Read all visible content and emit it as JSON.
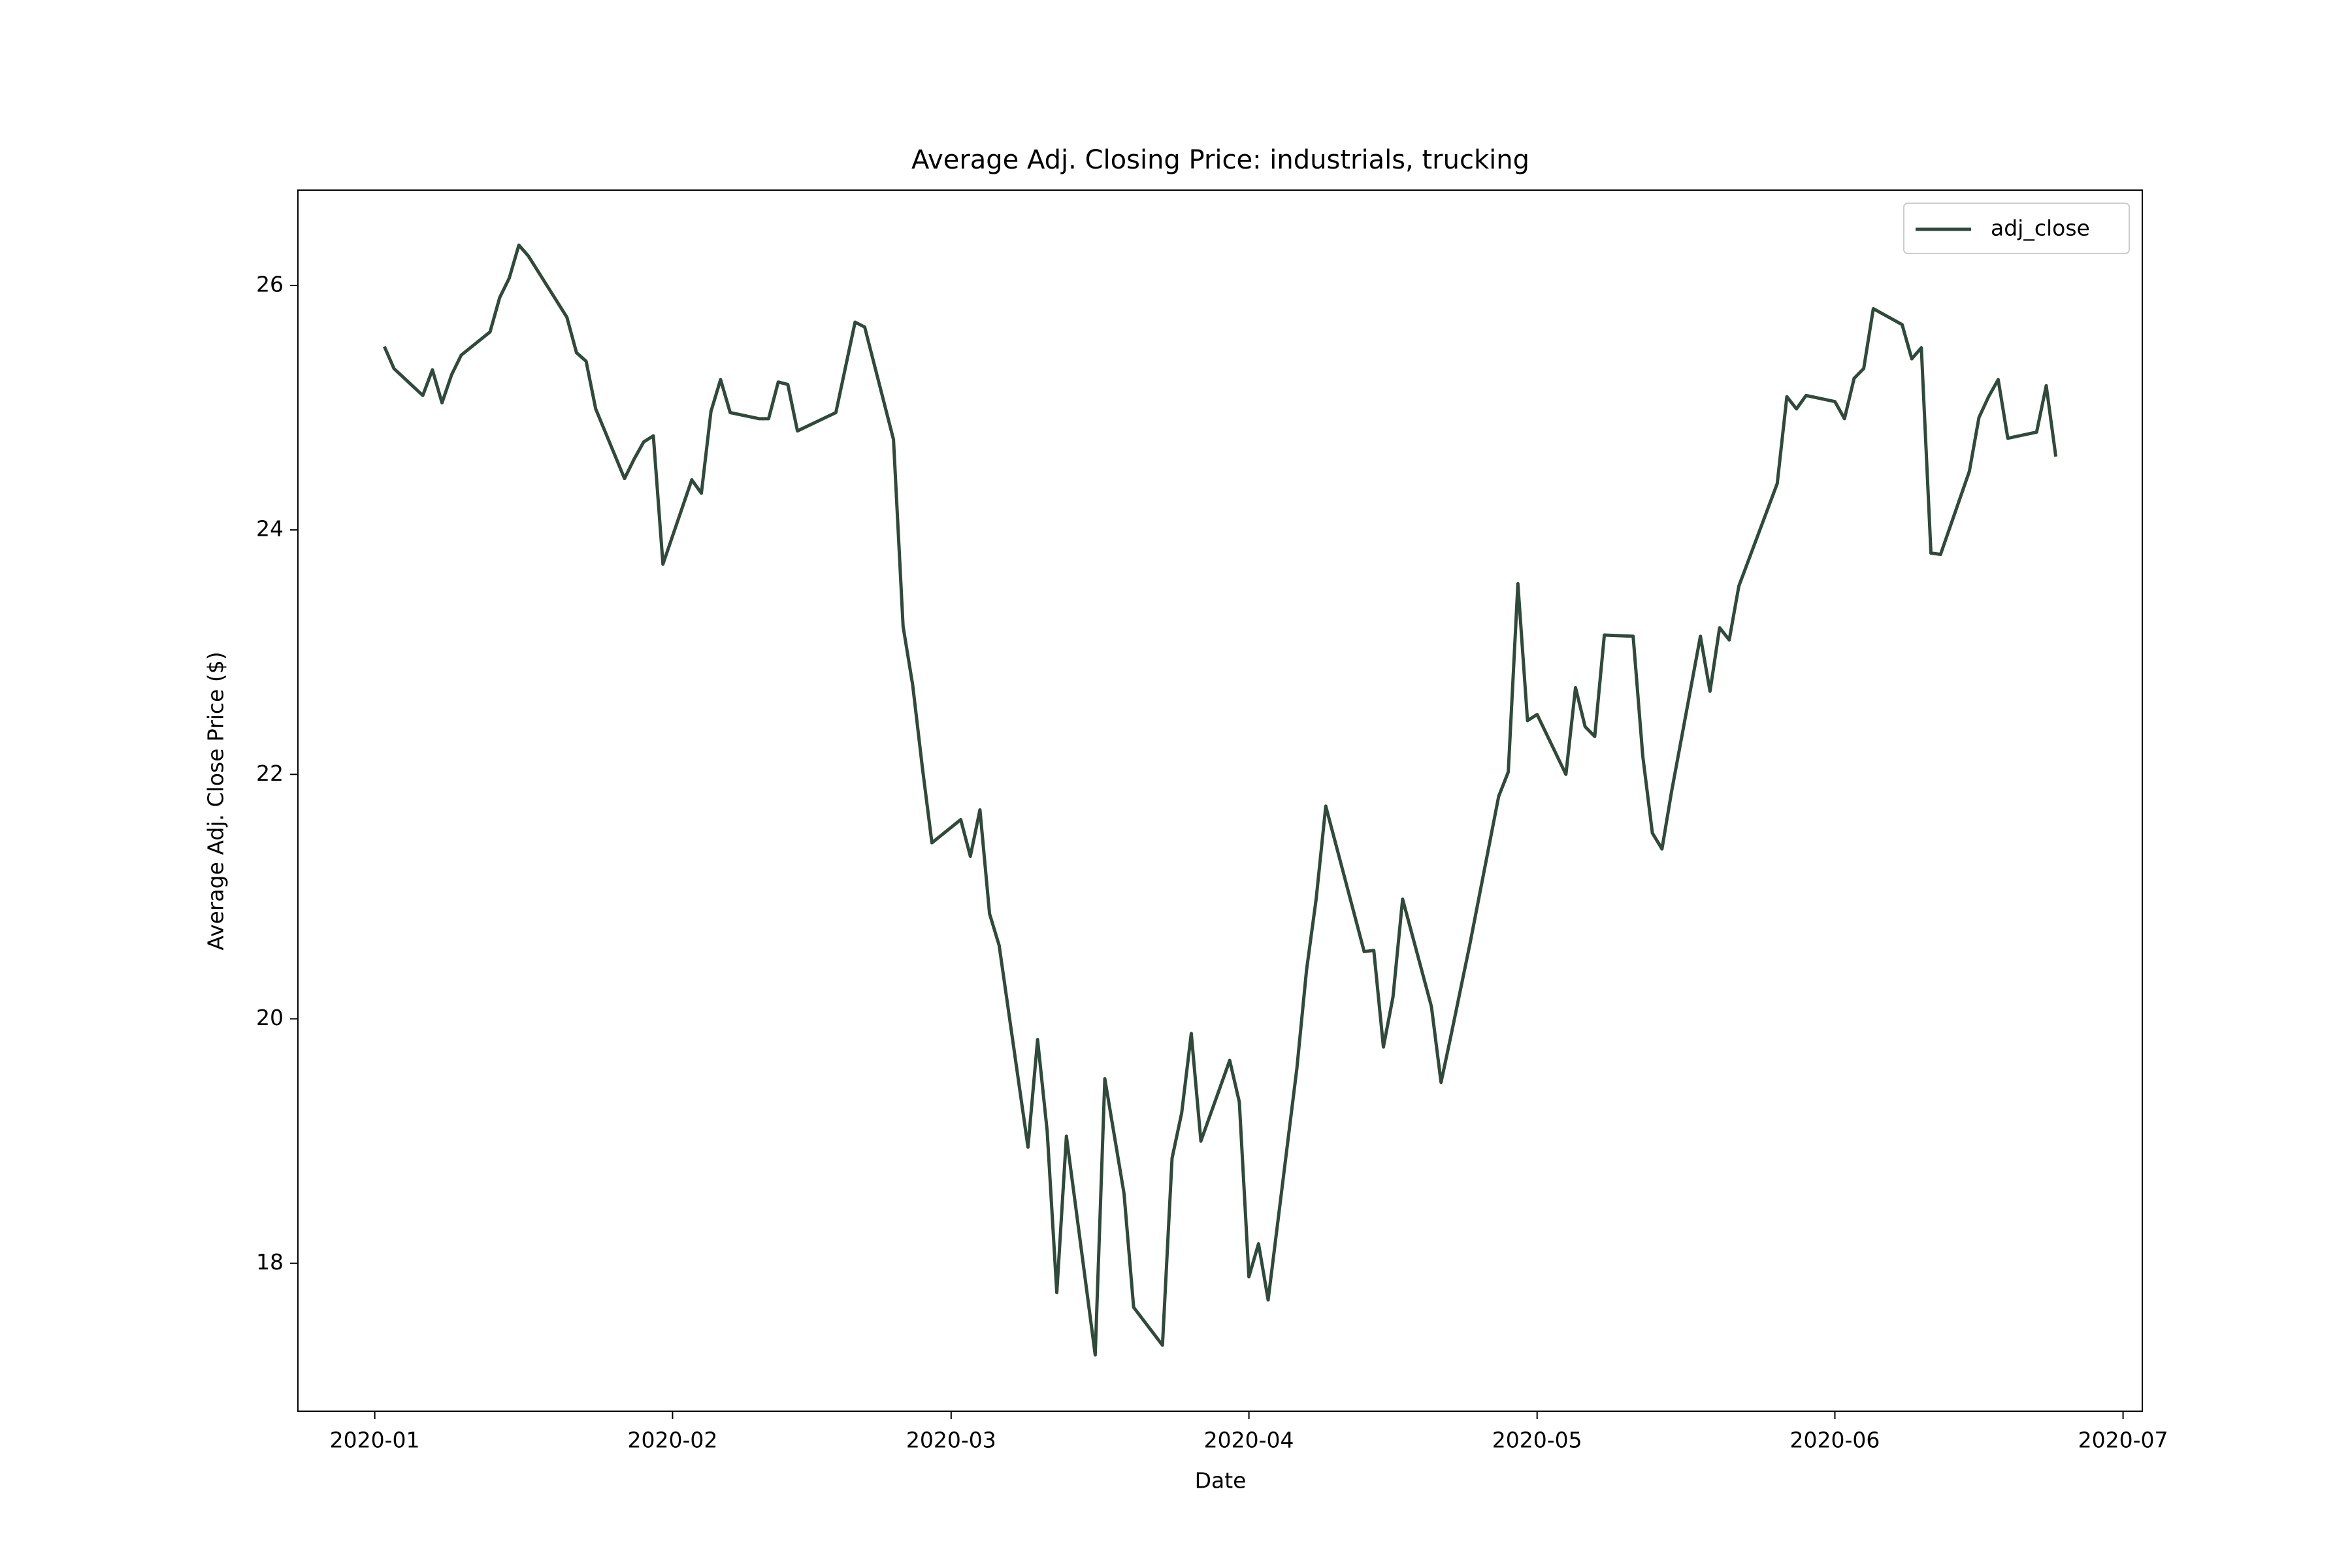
{
  "chart_data": {
    "type": "line",
    "title": "Average Adj. Closing Price: industrials, trucking",
    "x_label": "Date",
    "y_label": "Average Adj. Close Price ($)",
    "x": [
      "2020-01-02",
      "2020-01-03",
      "2020-01-06",
      "2020-01-07",
      "2020-01-08",
      "2020-01-09",
      "2020-01-10",
      "2020-01-13",
      "2020-01-14",
      "2020-01-15",
      "2020-01-16",
      "2020-01-17",
      "2020-01-21",
      "2020-01-22",
      "2020-01-23",
      "2020-01-24",
      "2020-01-27",
      "2020-01-28",
      "2020-01-29",
      "2020-01-30",
      "2020-01-31",
      "2020-02-03",
      "2020-02-04",
      "2020-02-05",
      "2020-02-06",
      "2020-02-07",
      "2020-02-10",
      "2020-02-11",
      "2020-02-12",
      "2020-02-13",
      "2020-02-14",
      "2020-02-18",
      "2020-02-19",
      "2020-02-20",
      "2020-02-21",
      "2020-02-24",
      "2020-02-25",
      "2020-02-26",
      "2020-02-27",
      "2020-02-28",
      "2020-03-02",
      "2020-03-03",
      "2020-03-04",
      "2020-03-05",
      "2020-03-06",
      "2020-03-09",
      "2020-03-10",
      "2020-03-11",
      "2020-03-12",
      "2020-03-13",
      "2020-03-16",
      "2020-03-17",
      "2020-03-18",
      "2020-03-19",
      "2020-03-20",
      "2020-03-23",
      "2020-03-24",
      "2020-03-25",
      "2020-03-26",
      "2020-03-27",
      "2020-03-30",
      "2020-03-31",
      "2020-04-01",
      "2020-04-02",
      "2020-04-03",
      "2020-04-06",
      "2020-04-07",
      "2020-04-08",
      "2020-04-09",
      "2020-04-13",
      "2020-04-14",
      "2020-04-15",
      "2020-04-16",
      "2020-04-17",
      "2020-04-20",
      "2020-04-21",
      "2020-04-22",
      "2020-04-23",
      "2020-04-24",
      "2020-04-27",
      "2020-04-28",
      "2020-04-29",
      "2020-04-30",
      "2020-05-01",
      "2020-05-04",
      "2020-05-05",
      "2020-05-06",
      "2020-05-07",
      "2020-05-08",
      "2020-05-11",
      "2020-05-12",
      "2020-05-13",
      "2020-05-14",
      "2020-05-15",
      "2020-05-18",
      "2020-05-19",
      "2020-05-20",
      "2020-05-21",
      "2020-05-22",
      "2020-05-26",
      "2020-05-27",
      "2020-05-28",
      "2020-05-29",
      "2020-06-01",
      "2020-06-02",
      "2020-06-03",
      "2020-06-04",
      "2020-06-05",
      "2020-06-08",
      "2020-06-09",
      "2020-06-10",
      "2020-06-11",
      "2020-06-12",
      "2020-06-15",
      "2020-06-16",
      "2020-06-17",
      "2020-06-18",
      "2020-06-19",
      "2020-06-22",
      "2020-06-23",
      "2020-06-24"
    ],
    "series": [
      {
        "name": "adj_close",
        "color": "#2f4a3a",
        "values": [
          25.5,
          25.32,
          25.1,
          25.31,
          25.04,
          25.27,
          25.43,
          25.62,
          25.9,
          26.06,
          26.33,
          26.24,
          25.74,
          25.45,
          25.38,
          24.99,
          24.42,
          24.58,
          24.72,
          24.77,
          23.72,
          24.41,
          24.3,
          24.97,
          25.23,
          24.96,
          24.91,
          24.91,
          25.21,
          25.19,
          24.81,
          24.96,
          25.33,
          25.7,
          25.66,
          24.74,
          23.21,
          22.73,
          22.06,
          21.44,
          21.63,
          21.33,
          21.71,
          20.86,
          20.6,
          18.95,
          19.83,
          19.08,
          17.76,
          19.04,
          17.25,
          19.51,
          19.04,
          18.57,
          17.64,
          17.33,
          18.86,
          19.23,
          19.88,
          19.0,
          19.66,
          19.32,
          17.89,
          18.16,
          17.7,
          19.6,
          20.4,
          20.98,
          21.74,
          20.55,
          20.56,
          19.77,
          20.18,
          20.98,
          20.1,
          19.48,
          19.85,
          20.23,
          20.61,
          21.82,
          22.02,
          23.56,
          22.44,
          22.49,
          22.0,
          22.71,
          22.39,
          22.31,
          23.14,
          23.13,
          22.15,
          21.52,
          21.39,
          21.86,
          23.13,
          22.68,
          23.2,
          23.1,
          23.54,
          24.38,
          25.09,
          24.99,
          25.1,
          25.05,
          24.91,
          25.24,
          25.32,
          25.81,
          25.68,
          25.4,
          25.49,
          23.81,
          23.8,
          24.48,
          24.92,
          25.09,
          25.23,
          24.75,
          24.8,
          25.18,
          24.6
        ]
      }
    ],
    "xlim": [
      "2019-12-24",
      "2020-07-03"
    ],
    "xticks": [
      {
        "value": "2020-01-01",
        "label": "2020-01"
      },
      {
        "value": "2020-02-01",
        "label": "2020-02"
      },
      {
        "value": "2020-03-01",
        "label": "2020-03"
      },
      {
        "value": "2020-04-01",
        "label": "2020-04"
      },
      {
        "value": "2020-05-01",
        "label": "2020-05"
      },
      {
        "value": "2020-06-01",
        "label": "2020-06"
      },
      {
        "value": "2020-07-01",
        "label": "2020-07"
      }
    ],
    "ylim": [
      16.79,
      26.78
    ],
    "yticks": [
      18,
      20,
      22,
      24,
      26
    ],
    "grid": false,
    "legend": "upper right"
  }
}
